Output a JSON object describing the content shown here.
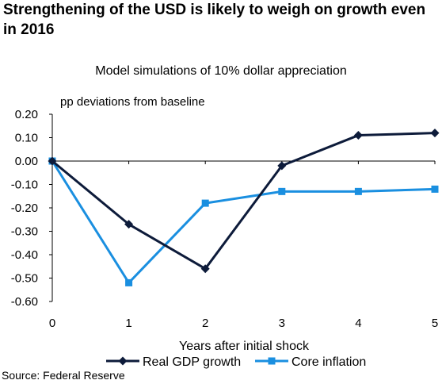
{
  "headline": "Strengthening of the USD is likely to weigh on growth even in 2016",
  "source": "Source: Federal Reserve",
  "chart_data": {
    "type": "line",
    "title": "Model simulations of 10% dollar appreciation",
    "unit_label": "pp  deviations from baseline",
    "xlabel": "Years after initial shock",
    "ylabel": "",
    "x": [
      0,
      1,
      2,
      3,
      4,
      5
    ],
    "xlim": [
      0,
      5
    ],
    "ylim": [
      -0.6,
      0.2
    ],
    "y_ticks": [
      "0.20",
      "0.10",
      "0.00",
      "-0.10",
      "-0.20",
      "-0.30",
      "-0.40",
      "-0.50",
      "-0.60"
    ],
    "grid": false,
    "legend_position": "bottom",
    "series": [
      {
        "name": "Real GDP growth",
        "values": [
          0.0,
          -0.27,
          -0.46,
          -0.02,
          0.11,
          0.12
        ],
        "color": "#0d1b3a",
        "marker": "diamond"
      },
      {
        "name": "Core inflation",
        "values": [
          0.0,
          -0.52,
          -0.18,
          -0.13,
          -0.13,
          -0.12
        ],
        "color": "#1a8fe0",
        "marker": "square"
      }
    ]
  }
}
